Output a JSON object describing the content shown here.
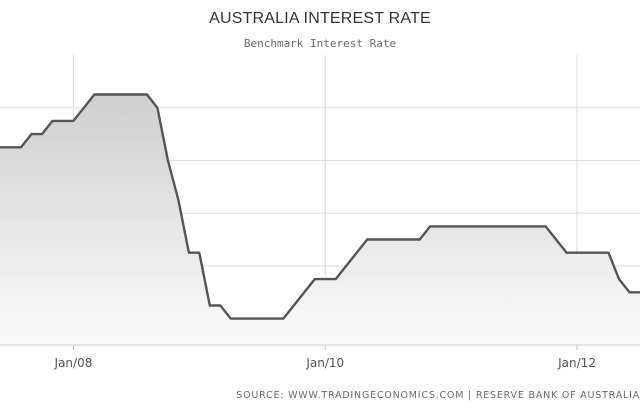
{
  "chart_data": {
    "type": "area",
    "title": "AUSTRALIA INTEREST RATE",
    "subtitle": "Benchmark Interest Rate",
    "xlabel": "",
    "ylabel": "",
    "x_tick_labels": [
      "Jan/08",
      "Jan/10",
      "Jan/12"
    ],
    "y_tick_labels": [],
    "x_range": [
      "2007-06",
      "2012-07"
    ],
    "y_range": [
      2.5,
      8
    ],
    "grid": true,
    "legend": "none",
    "line_color": "#555555",
    "fill_color": "#dcdcdc",
    "series": [
      {
        "x": [
          "2007-06",
          "2007-07",
          "2007-08",
          "2007-09",
          "2007-10",
          "2007-11",
          "2007-12",
          "2008-01",
          "2008-02",
          "2008-03",
          "2008-04",
          "2008-05",
          "2008-06",
          "2008-07",
          "2008-08",
          "2008-09",
          "2008-10",
          "2008-11",
          "2008-12",
          "2009-01",
          "2009-02",
          "2009-03",
          "2009-04",
          "2009-05",
          "2009-06",
          "2009-07",
          "2009-08",
          "2009-09",
          "2009-10",
          "2009-11",
          "2009-12",
          "2010-01",
          "2010-02",
          "2010-03",
          "2010-04",
          "2010-05",
          "2010-06",
          "2010-07",
          "2010-08",
          "2010-09",
          "2010-10",
          "2010-11",
          "2010-12",
          "2011-01",
          "2011-02",
          "2011-03",
          "2011-04",
          "2011-05",
          "2011-06",
          "2011-07",
          "2011-08",
          "2011-09",
          "2011-10",
          "2011-11",
          "2011-12",
          "2012-01",
          "2012-02",
          "2012-03",
          "2012-04",
          "2012-05",
          "2012-06",
          "2012-07"
        ],
        "values": [
          6.25,
          6.25,
          6.25,
          6.5,
          6.5,
          6.75,
          6.75,
          6.75,
          7.0,
          7.25,
          7.25,
          7.25,
          7.25,
          7.25,
          7.25,
          7.0,
          6.0,
          5.25,
          4.25,
          4.25,
          3.25,
          3.25,
          3.0,
          3.0,
          3.0,
          3.0,
          3.0,
          3.0,
          3.25,
          3.5,
          3.75,
          3.75,
          3.75,
          4.0,
          4.25,
          4.5,
          4.5,
          4.5,
          4.5,
          4.5,
          4.5,
          4.75,
          4.75,
          4.75,
          4.75,
          4.75,
          4.75,
          4.75,
          4.75,
          4.75,
          4.75,
          4.75,
          4.75,
          4.5,
          4.25,
          4.25,
          4.25,
          4.25,
          4.25,
          3.75,
          3.5,
          3.5
        ]
      }
    ]
  },
  "footer": {
    "source_text": "SOURCE: WWW.TRADINGECONOMICS.COM  |  RESERVE BANK OF AUSTRALIA"
  }
}
